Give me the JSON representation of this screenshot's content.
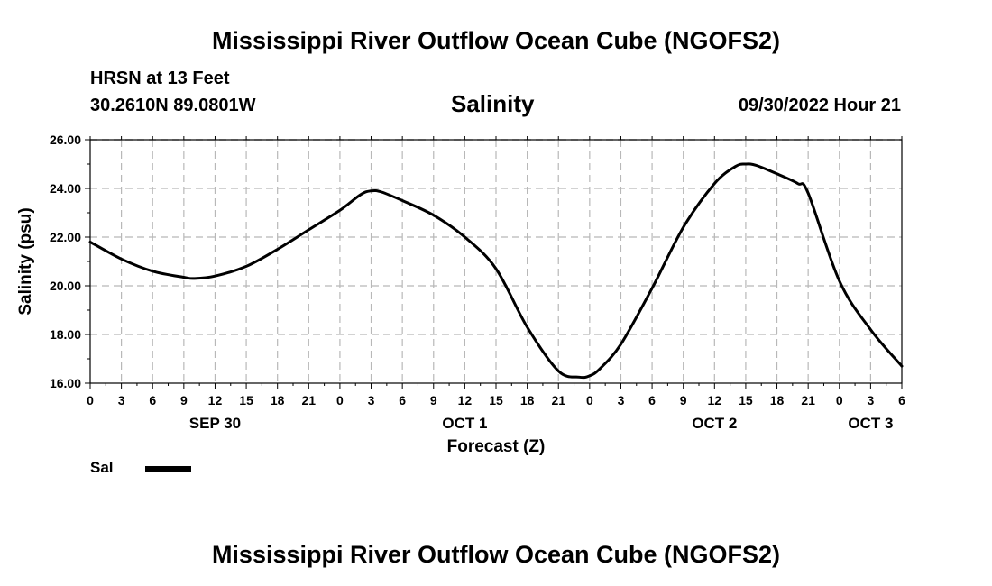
{
  "header": {
    "title": "Mississippi River Outflow Ocean Cube (NGOFS2)",
    "station": "HRSN at 13 Feet",
    "coordinates": "30.2610N  89.0801W",
    "subtitle": "Salinity",
    "datetime": "09/30/2022 Hour 21"
  },
  "footer": {
    "title": "Mississippi River Outflow Ocean Cube (NGOFS2)"
  },
  "legend": {
    "label": "Sal",
    "color": "#000000"
  },
  "chart_data": {
    "type": "line",
    "title": "Salinity",
    "xlabel": "Forecast (Z)",
    "ylabel": "Salinity (psu)",
    "xlim": [
      0,
      78
    ],
    "ylim": [
      16,
      26
    ],
    "yticks": [
      "16.00",
      "18.00",
      "20.00",
      "22.00",
      "24.00",
      "26.00"
    ],
    "yvalues": [
      16,
      18,
      20,
      22,
      24,
      26
    ],
    "xtick_labels": [
      "0",
      "3",
      "6",
      "9",
      "12",
      "15",
      "18",
      "21",
      "0",
      "3",
      "6",
      "9",
      "12",
      "15",
      "18",
      "21",
      "0",
      "3",
      "6",
      "9",
      "12",
      "15",
      "18",
      "21",
      "0",
      "3",
      "6"
    ],
    "day_labels": [
      {
        "label": "SEP 30",
        "x": 12
      },
      {
        "label": "OCT 1",
        "x": 36
      },
      {
        "label": "OCT 2",
        "x": 60
      },
      {
        "label": "OCT 3",
        "x": 75
      }
    ],
    "grid": true,
    "series": [
      {
        "name": "Sal",
        "color": "#000000",
        "x": [
          0,
          3,
          6,
          9,
          10,
          12,
          15,
          18,
          21,
          24,
          26,
          27,
          28,
          30,
          33,
          36,
          39,
          42,
          45,
          47,
          48,
          49,
          51,
          54,
          57,
          60,
          62,
          63,
          64,
          66,
          68,
          69,
          72,
          75,
          78
        ],
        "values": [
          21.8,
          21.1,
          20.6,
          20.35,
          20.3,
          20.4,
          20.8,
          21.5,
          22.3,
          23.1,
          23.75,
          23.9,
          23.85,
          23.5,
          22.9,
          22.0,
          20.7,
          18.3,
          16.5,
          16.25,
          16.3,
          16.6,
          17.6,
          19.9,
          22.4,
          24.2,
          24.9,
          25.0,
          24.95,
          24.6,
          24.2,
          23.8,
          20.2,
          18.2,
          16.7
        ]
      }
    ]
  }
}
